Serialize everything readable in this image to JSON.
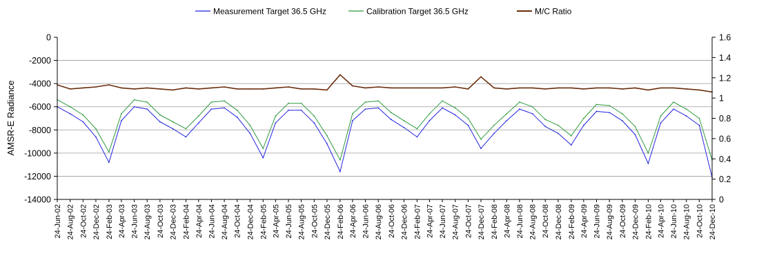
{
  "chart_data": {
    "type": "line",
    "title": "",
    "ylabel": "AMSR-E Radiance",
    "y2label": "",
    "ylim": [
      -14000,
      0
    ],
    "y2lim": [
      0,
      1.6
    ],
    "yticks": [
      "0",
      "-2000",
      "-4000",
      "-6000",
      "-8000",
      "-10000",
      "-12000",
      "-14000"
    ],
    "y2ticks": [
      "1.6",
      "1.4",
      "1.2",
      "1",
      "0.8",
      "0.6",
      "0.4",
      "0.2",
      "0"
    ],
    "xlim": [
      "2002-06-24",
      "2010-12-24"
    ],
    "xticks": [
      "24-Jun-02",
      "24-Aug-02",
      "24-Oct-02",
      "24-Dec-02",
      "24-Feb-03",
      "24-Apr-03",
      "24-Jun-03",
      "24-Aug-03",
      "24-Oct-03",
      "24-Dec-03",
      "24-Feb-04",
      "24-Apr-04",
      "24-Jun-04",
      "24-Aug-04",
      "24-Oct-04",
      "24-Dec-04",
      "24-Feb-05",
      "24-Apr-05",
      "24-Jun-05",
      "24-Aug-05",
      "24-Oct-05",
      "24-Dec-05",
      "24-Feb-06",
      "24-Apr-06",
      "24-Jun-06",
      "24-Aug-06",
      "24-Oct-06",
      "24-Dec-06",
      "24-Feb-07",
      "24-Apr-07",
      "24-Jun-07",
      "24-Aug-07",
      "24-Oct-07",
      "24-Dec-07",
      "24-Feb-08",
      "24-Apr-08",
      "24-Jun-08",
      "24-Aug-08",
      "24-Oct-08",
      "24-Dec-08",
      "24-Feb-09",
      "24-Apr-09",
      "24-Jun-09",
      "24-Aug-09",
      "24-Oct-09",
      "24-Dec-09",
      "24-Feb-10",
      "24-Apr-10",
      "24-Jun-10",
      "24-Aug-10",
      "24-Oct-10",
      "24-Dec-10"
    ],
    "grid": "horizontal",
    "legend": "top-center",
    "series": [
      {
        "name": "Measurement Target 36.5 GHz",
        "color": "#2222dd",
        "axis": "left",
        "x": [
          "2002-06-24",
          "2002-08-24",
          "2002-10-24",
          "2002-12-24",
          "2003-02-24",
          "2003-04-24",
          "2003-06-24",
          "2003-08-24",
          "2003-10-24",
          "2003-12-24",
          "2004-02-24",
          "2004-04-24",
          "2004-06-24",
          "2004-08-24",
          "2004-10-24",
          "2004-12-24",
          "2005-02-24",
          "2005-04-24",
          "2005-06-24",
          "2005-08-24",
          "2005-10-24",
          "2005-12-24",
          "2006-02-24",
          "2006-04-24",
          "2006-06-24",
          "2006-08-24",
          "2006-10-24",
          "2006-12-24",
          "2007-02-24",
          "2007-04-24",
          "2007-06-24",
          "2007-08-24",
          "2007-10-24",
          "2007-12-24",
          "2008-02-24",
          "2008-04-24",
          "2008-06-24",
          "2008-08-24",
          "2008-10-24",
          "2008-12-24",
          "2009-02-24",
          "2009-04-24",
          "2009-06-24",
          "2009-08-24",
          "2009-10-24",
          "2009-12-24",
          "2010-02-24",
          "2010-04-24",
          "2010-06-24",
          "2010-08-24",
          "2010-10-24",
          "2010-12-24"
        ],
        "y": [
          -6000,
          -6600,
          -7300,
          -8600,
          -10800,
          -7200,
          -6000,
          -6200,
          -7300,
          -7900,
          -8600,
          -7400,
          -6200,
          -6100,
          -6900,
          -8300,
          -10400,
          -7400,
          -6300,
          -6300,
          -7400,
          -9200,
          -11600,
          -7200,
          -6200,
          -6100,
          -7100,
          -7800,
          -8600,
          -7200,
          -6100,
          -6700,
          -7600,
          -9600,
          -8300,
          -7200,
          -6200,
          -6600,
          -7700,
          -8300,
          -9300,
          -7600,
          -6400,
          -6500,
          -7200,
          -8400,
          -10900,
          -7400,
          -6200,
          -6800,
          -7600,
          -12100
        ]
      },
      {
        "name": "Calibration Target 36.5 GHz",
        "color": "#2e9a3e",
        "axis": "left",
        "x": [
          "2002-06-24",
          "2002-08-24",
          "2002-10-24",
          "2002-12-24",
          "2003-02-24",
          "2003-04-24",
          "2003-06-24",
          "2003-08-24",
          "2003-10-24",
          "2003-12-24",
          "2004-02-24",
          "2004-04-24",
          "2004-06-24",
          "2004-08-24",
          "2004-10-24",
          "2004-12-24",
          "2005-02-24",
          "2005-04-24",
          "2005-06-24",
          "2005-08-24",
          "2005-10-24",
          "2005-12-24",
          "2006-02-24",
          "2006-04-24",
          "2006-06-24",
          "2006-08-24",
          "2006-10-24",
          "2006-12-24",
          "2007-02-24",
          "2007-04-24",
          "2007-06-24",
          "2007-08-24",
          "2007-10-24",
          "2007-12-24",
          "2008-02-24",
          "2008-04-24",
          "2008-06-24",
          "2008-08-24",
          "2008-10-24",
          "2008-12-24",
          "2009-02-24",
          "2009-04-24",
          "2009-06-24",
          "2009-08-24",
          "2009-10-24",
          "2009-12-24",
          "2010-02-24",
          "2010-04-24",
          "2010-06-24",
          "2010-08-24",
          "2010-10-24",
          "2010-12-24"
        ],
        "y": [
          -5400,
          -6000,
          -6700,
          -7900,
          -9900,
          -6600,
          -5400,
          -5600,
          -6700,
          -7300,
          -7900,
          -6800,
          -5600,
          -5500,
          -6300,
          -7600,
          -9600,
          -6800,
          -5700,
          -5700,
          -6800,
          -8500,
          -10600,
          -6600,
          -5600,
          -5500,
          -6500,
          -7200,
          -7900,
          -6600,
          -5500,
          -6100,
          -7000,
          -8800,
          -7600,
          -6600,
          -5600,
          -6000,
          -7100,
          -7600,
          -8500,
          -7000,
          -5800,
          -5900,
          -6600,
          -7700,
          -10000,
          -6800,
          -5600,
          -6200,
          -7000,
          -10600
        ]
      },
      {
        "name": "M/C Ratio",
        "color": "#6b2d0c",
        "axis": "right",
        "x": [
          "2002-06-24",
          "2002-08-24",
          "2002-10-24",
          "2002-12-24",
          "2003-02-24",
          "2003-04-24",
          "2003-06-24",
          "2003-08-24",
          "2003-10-24",
          "2003-12-24",
          "2004-02-24",
          "2004-04-24",
          "2004-06-24",
          "2004-08-24",
          "2004-10-24",
          "2004-12-24",
          "2005-02-24",
          "2005-04-24",
          "2005-06-24",
          "2005-08-24",
          "2005-10-24",
          "2005-12-24",
          "2006-02-24",
          "2006-04-24",
          "2006-06-24",
          "2006-08-24",
          "2006-10-24",
          "2006-12-24",
          "2007-02-24",
          "2007-04-24",
          "2007-06-24",
          "2007-08-24",
          "2007-10-24",
          "2007-12-24",
          "2008-02-24",
          "2008-04-24",
          "2008-06-24",
          "2008-08-24",
          "2008-10-24",
          "2008-12-24",
          "2009-02-24",
          "2009-04-24",
          "2009-06-24",
          "2009-08-24",
          "2009-10-24",
          "2009-12-24",
          "2010-02-24",
          "2010-04-24",
          "2010-06-24",
          "2010-08-24",
          "2010-10-24",
          "2010-12-24"
        ],
        "y": [
          1.13,
          1.09,
          1.1,
          1.11,
          1.13,
          1.1,
          1.09,
          1.1,
          1.09,
          1.08,
          1.1,
          1.09,
          1.1,
          1.11,
          1.09,
          1.09,
          1.09,
          1.1,
          1.11,
          1.09,
          1.09,
          1.08,
          1.23,
          1.12,
          1.1,
          1.11,
          1.1,
          1.1,
          1.1,
          1.1,
          1.1,
          1.11,
          1.09,
          1.21,
          1.1,
          1.09,
          1.1,
          1.1,
          1.09,
          1.1,
          1.1,
          1.09,
          1.1,
          1.1,
          1.09,
          1.1,
          1.08,
          1.1,
          1.1,
          1.09,
          1.08,
          1.06
        ]
      }
    ]
  }
}
